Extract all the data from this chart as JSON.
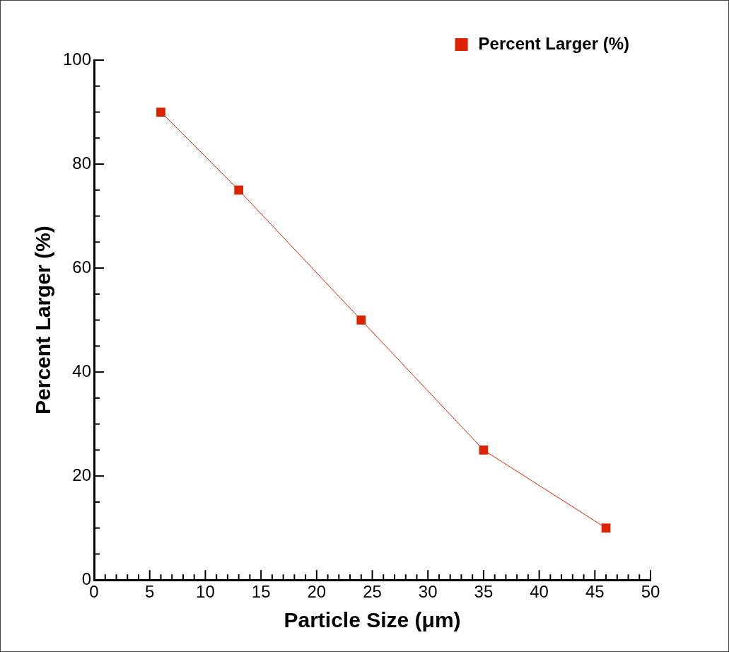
{
  "chart_data": {
    "type": "line",
    "xlabel": "Particle Size (μm)",
    "ylabel": "Percent Larger (%)",
    "x": [
      6,
      13,
      24,
      35,
      46
    ],
    "series": [
      {
        "name": "Percent Larger (%)",
        "color": "#dd2200",
        "values": [
          90,
          75,
          50,
          25,
          10
        ]
      }
    ],
    "xlim": [
      0,
      50
    ],
    "xticks": [
      0,
      {
        "value": 1,
        "label": null
      },
      {
        "value": 2,
        "label": null
      },
      {
        "value": 3,
        "label": null
      },
      {
        "value": 4,
        "label": null
      },
      5,
      {
        "value": 6,
        "label": null
      },
      {
        "value": 7,
        "label": null
      },
      {
        "value": 8,
        "label": null
      },
      {
        "value": 9,
        "label": null
      },
      10,
      {
        "value": 11,
        "label": null
      },
      {
        "value": 12,
        "label": null
      },
      {
        "value": 13,
        "label": null
      },
      {
        "value": 14,
        "label": null
      },
      15,
      {
        "value": 16,
        "label": null
      },
      {
        "value": 17,
        "label": null
      },
      {
        "value": 18,
        "label": null
      },
      {
        "value": 19,
        "label": null
      },
      20,
      {
        "value": 21,
        "label": null
      },
      {
        "value": 22,
        "label": null
      },
      {
        "value": 23,
        "label": null
      },
      {
        "value": 24,
        "label": null
      },
      25,
      {
        "value": 26,
        "label": null
      },
      {
        "value": 27,
        "label": null
      },
      {
        "value": 28,
        "label": null
      },
      {
        "value": 29,
        "label": null
      },
      30,
      {
        "value": 31,
        "label": null
      },
      {
        "value": 32,
        "label": null
      },
      {
        "value": 33,
        "label": null
      },
      {
        "value": 34,
        "label": null
      },
      35,
      {
        "value": 36,
        "label": null
      },
      {
        "value": 37,
        "label": null
      },
      {
        "value": 38,
        "label": null
      },
      {
        "value": 39,
        "label": null
      },
      40,
      {
        "value": 41,
        "label": null
      },
      {
        "value": 42,
        "label": null
      },
      {
        "value": 43,
        "label": null
      },
      {
        "value": 44,
        "label": null
      },
      45,
      {
        "value": 46,
        "label": null
      },
      {
        "value": 47,
        "label": null
      },
      {
        "value": 48,
        "label": null
      },
      {
        "value": 49,
        "label": null
      },
      50
    ],
    "ylim": [
      0,
      100
    ],
    "yticks": [
      0,
      {
        "value": 5,
        "label": null
      },
      {
        "value": 10,
        "label": null
      },
      {
        "value": 15,
        "label": null
      },
      20,
      {
        "value": 25,
        "label": null
      },
      {
        "value": 30,
        "label": null
      },
      {
        "value": 35,
        "label": null
      },
      40,
      {
        "value": 45,
        "label": null
      },
      {
        "value": 50,
        "label": null
      },
      {
        "value": 55,
        "label": null
      },
      60,
      {
        "value": 65,
        "label": null
      },
      {
        "value": 70,
        "label": null
      },
      {
        "value": 75,
        "label": null
      },
      80,
      {
        "value": 85,
        "label": null
      },
      {
        "value": 90,
        "label": null
      },
      {
        "value": 95,
        "label": null
      },
      100
    ],
    "grid": false,
    "legend": "top right",
    "marker": "square",
    "line_style": "solid"
  }
}
